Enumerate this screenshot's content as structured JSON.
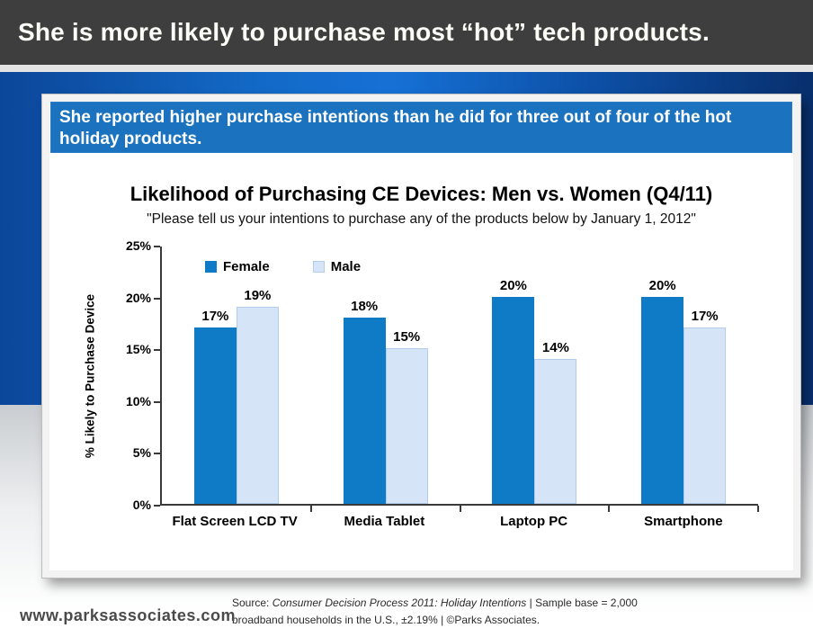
{
  "banner": {
    "title": "She is more likely to purchase most “hot” tech products."
  },
  "statement": {
    "text": "She reported higher purchase intentions than he did for three out of four of the hot holiday products."
  },
  "chart_data": {
    "type": "bar",
    "title": "Likelihood of Purchasing CE Devices: Men vs. Women (Q4/11)",
    "subtitle": "\"Please tell us your intentions to purchase any of the products below by January 1, 2012\"",
    "categories": [
      "Flat Screen LCD TV",
      "Media Tablet",
      "Laptop PC",
      "Smartphone"
    ],
    "series": [
      {
        "name": "Female",
        "color": "#0f7ac6",
        "border_color": "#0f7ac6",
        "values": [
          17,
          18,
          20,
          20
        ]
      },
      {
        "name": "Male",
        "color": "#d6e4f7",
        "border_color": "#b3cdec",
        "values": [
          19,
          15,
          14,
          17
        ]
      }
    ],
    "ylabel": "% Likely to Purchase Device",
    "xlabel": "",
    "ylim": [
      0,
      25
    ],
    "ytick_step": 5,
    "ytick_labels": [
      "0%",
      "5%",
      "10%",
      "15%",
      "20%",
      "25%"
    ],
    "value_suffix": "%",
    "grid": false,
    "legend_position": "top-left-inside"
  },
  "footer": {
    "site": "www.parksassociates.com",
    "source_prefix": "Source: ",
    "source_italic": "Consumer Decision Process 2011: Holiday Intentions",
    "source_rest": "  | Sample base = 2,000 broadband households in the U.S.,  ±2.19% | ©Parks Associates."
  },
  "colors": {
    "banner_bg": "#3e3e3e",
    "statement_bg": "#1b73c0",
    "female_bar": "#0f7ac6",
    "male_bar": "#d6e4f7",
    "axis": "#3a3a3a"
  }
}
